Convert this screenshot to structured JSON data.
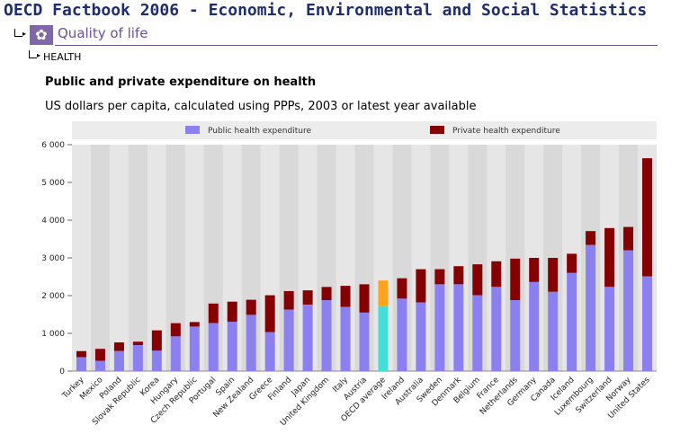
{
  "header": {
    "title": "OECD Factbook 2006 - Economic, Environmental and Social Statistics",
    "section": "Quality of life",
    "section_icon": "flower-icon",
    "subsection": "HEALTH"
  },
  "colors": {
    "public": "#8c7ff0",
    "private": "#850000",
    "avg_public": "#40e0d8",
    "avg_private": "#ffa31a",
    "plot_bg": "#d9d9d9",
    "stripe_light": "#e6e6e6",
    "legend_bg": "#ececec"
  },
  "chart_data": {
    "type": "bar",
    "stacked": true,
    "title": "Public and private expenditure on health",
    "subtitle": "US dollars per capita, calculated using PPPs, 2003 or latest year available",
    "categories": [
      "Turkey",
      "Mexico",
      "Poland",
      "Slovak Republic",
      "Korea",
      "Hungary",
      "Czech Republic",
      "Portugal",
      "Spain",
      "New Zealand",
      "Greece",
      "Finland",
      "Japan",
      "United Kingdom",
      "Italy",
      "Austria",
      "OECD average",
      "Ireland",
      "Australia",
      "Sweden",
      "Denmark",
      "Belgium",
      "France",
      "Netherlands",
      "Germany",
      "Canada",
      "Iceland",
      "Luxembourg",
      "Switzerland",
      "Norway",
      "United States"
    ],
    "highlight_category": "OECD average",
    "series": [
      {
        "name": "Public health expenditure",
        "values": [
          370,
          270,
          530,
          690,
          540,
          920,
          1180,
          1270,
          1310,
          1490,
          1030,
          1630,
          1760,
          1880,
          1700,
          1550,
          1720,
          1920,
          1820,
          2300,
          2300,
          2010,
          2230,
          1880,
          2360,
          2100,
          2600,
          3340,
          2230,
          3200,
          2510
        ]
      },
      {
        "name": "Private health expenditure",
        "values": [
          160,
          320,
          230,
          90,
          540,
          350,
          120,
          520,
          530,
          400,
          980,
          490,
          380,
          350,
          560,
          750,
          680,
          540,
          880,
          400,
          480,
          820,
          680,
          1100,
          640,
          900,
          510,
          370,
          1560,
          620,
          3130
        ]
      }
    ],
    "ylim": [
      0,
      6000
    ],
    "yticks": [
      0,
      1000,
      2000,
      3000,
      4000,
      5000,
      6000
    ],
    "ytick_labels": [
      "0",
      "1 000",
      "2 000",
      "3 000",
      "4 000",
      "5 000",
      "6 000"
    ],
    "grid": false,
    "legend_position": "top"
  }
}
